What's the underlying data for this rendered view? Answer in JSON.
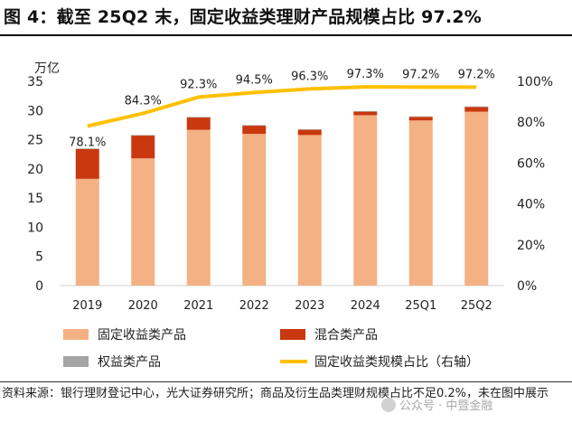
{
  "title": "图 4：截至 25Q2 末，固定收益类理财产品规模占比 97.2%",
  "source_text": "资料来源：银行理财登记中心，光大证券研究所；商品及衍生品类理财规模占比不足0.2%，未在图中展示",
  "watermark": "公众号 · 中暨金融",
  "colors": {
    "fixed": "#f4b183",
    "mixed": "#c9380e",
    "equity": "#a5a5a5",
    "line": "#ffc000"
  },
  "chart_data": {
    "type": "bar",
    "stacked": true,
    "categories": [
      "2019",
      "2020",
      "2021",
      "2022",
      "2023",
      "2024",
      "25Q1",
      "25Q2"
    ],
    "series": [
      {
        "name": "固定收益类产品",
        "axis": "left",
        "values": [
          18.3,
          21.8,
          26.7,
          26.0,
          25.8,
          29.2,
          28.3,
          29.8
        ]
      },
      {
        "name": "混合类产品",
        "axis": "left",
        "values": [
          5.1,
          3.9,
          2.1,
          1.4,
          0.9,
          0.6,
          0.6,
          0.8
        ]
      },
      {
        "name": "权益类产品",
        "axis": "left",
        "values": [
          0.1,
          0.1,
          0.1,
          0.1,
          0.1,
          0.1,
          0.1,
          0.1
        ]
      }
    ],
    "line_series": {
      "name": "固定收益类规模占比（右轴）",
      "axis": "right",
      "values": [
        78.1,
        84.3,
        92.3,
        94.5,
        96.3,
        97.3,
        97.2,
        97.2
      ],
      "labels": [
        "78.1%",
        "84.3%",
        "92.3%",
        "94.5%",
        "96.3%",
        "97.3%",
        "97.2%",
        "97.2%"
      ]
    },
    "y_left": {
      "unit_label": "万亿",
      "min": 0,
      "max": 35,
      "ticks": [
        "0",
        "5",
        "10",
        "15",
        "20",
        "25",
        "30",
        "35"
      ]
    },
    "y_right": {
      "min": 0,
      "max": 100,
      "ticks": [
        "0%",
        "20%",
        "40%",
        "60%",
        "80%",
        "100%"
      ]
    },
    "legend": [
      "固定收益类产品",
      "混合类产品",
      "权益类产品",
      "固定收益类规模占比（右轴）"
    ],
    "legend_position": "bottom",
    "grid": false
  }
}
